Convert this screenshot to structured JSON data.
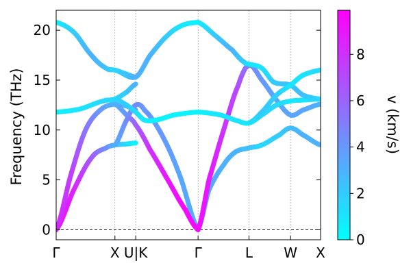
{
  "chart_data": {
    "type": "line",
    "ylabel": "Frequency (THz)",
    "ylim": [
      -1,
      22
    ],
    "yticks": [
      0,
      5,
      10,
      15,
      20
    ],
    "xticks": [
      {
        "label": "Γ",
        "pos": 0.0
      },
      {
        "label": "X",
        "pos": 1.0
      },
      {
        "label": "U|K",
        "pos": 1.354
      },
      {
        "label": "Γ",
        "pos": 2.415
      },
      {
        "label": "L",
        "pos": 3.281
      },
      {
        "label": "W",
        "pos": 3.989
      },
      {
        "label": "X",
        "pos": 4.5
      }
    ],
    "zero_line": true,
    "colorbar": {
      "label": "v (km/s)",
      "min": 0,
      "max": 9.9,
      "ticks": [
        0,
        2,
        4,
        6,
        8
      ],
      "colors": [
        "#00ffff",
        "#ff00ff"
      ]
    },
    "series": [
      {
        "points": [
          [
            0,
            0,
            9.5
          ],
          [
            0.3,
            4.0,
            8.5
          ],
          [
            0.6,
            7.2,
            6.5
          ],
          [
            0.85,
            8.2,
            4.5
          ],
          [
            1.0,
            8.5,
            3.0
          ],
          [
            1.2,
            8.6,
            1.5
          ],
          [
            1.354,
            8.7,
            0.5
          ]
        ]
      },
      {
        "points": [
          [
            0,
            0,
            8.5
          ],
          [
            0.25,
            5.5,
            7.5
          ],
          [
            0.5,
            10.0,
            5.5
          ],
          [
            0.75,
            12.0,
            4.0
          ],
          [
            1.0,
            12.6,
            3.0
          ],
          [
            1.2,
            12.4,
            3.5
          ],
          [
            1.354,
            12.0,
            4.0
          ]
        ]
      },
      {
        "points": [
          [
            0,
            11.8,
            0.5
          ],
          [
            0.4,
            12.1,
            1.0
          ],
          [
            0.8,
            12.9,
            1.5
          ],
          [
            1.0,
            13.1,
            1.5
          ],
          [
            1.2,
            13.8,
            2.0
          ],
          [
            1.354,
            14.6,
            3.0
          ]
        ]
      },
      {
        "points": [
          [
            0,
            20.8,
            0.5
          ],
          [
            0.3,
            19.8,
            2.0
          ],
          [
            0.6,
            17.5,
            3.0
          ],
          [
            0.85,
            16.2,
            2.5
          ],
          [
            1.0,
            16.0,
            1.5
          ],
          [
            1.2,
            15.6,
            2.0
          ],
          [
            1.354,
            15.3,
            3.0
          ]
        ]
      },
      {
        "points": [
          [
            1.0,
            8.5,
            3.0
          ],
          [
            1.2,
            11.0,
            4.5
          ],
          [
            1.354,
            12.5,
            4.5
          ],
          [
            1.5,
            12.0,
            4.0
          ],
          [
            1.8,
            9.5,
            4.0
          ],
          [
            2.1,
            5.5,
            3.5
          ],
          [
            2.415,
            0,
            3.0
          ]
        ]
      },
      {
        "points": [
          [
            1.0,
            12.6,
            3.0
          ],
          [
            1.2,
            11.5,
            4.0
          ],
          [
            1.354,
            10.5,
            6.0
          ],
          [
            1.6,
            8.0,
            8.0
          ],
          [
            1.9,
            5.0,
            9.0
          ],
          [
            2.2,
            2.0,
            9.5
          ],
          [
            2.415,
            0,
            9.5
          ]
        ]
      },
      {
        "points": [
          [
            1.0,
            13.1,
            1.5
          ],
          [
            1.2,
            12.5,
            2.0
          ],
          [
            1.354,
            11.8,
            1.5
          ],
          [
            1.5,
            11.0,
            1.0
          ],
          [
            1.7,
            11.0,
            0.5
          ],
          [
            2.0,
            11.5,
            0.5
          ],
          [
            2.415,
            11.8,
            0.5
          ]
        ]
      },
      {
        "points": [
          [
            1.0,
            16.0,
            1.5
          ],
          [
            1.354,
            15.3,
            3.0
          ],
          [
            1.6,
            17.5,
            3.0
          ],
          [
            1.9,
            19.5,
            2.0
          ],
          [
            2.15,
            20.5,
            1.0
          ],
          [
            2.415,
            20.8,
            0.5
          ]
        ]
      },
      {
        "points": [
          [
            2.415,
            0,
            3.0
          ],
          [
            2.6,
            4.0,
            3.5
          ],
          [
            2.85,
            6.5,
            3.0
          ],
          [
            3.05,
            7.8,
            3.0
          ],
          [
            3.281,
            8.2,
            2.5
          ],
          [
            3.5,
            8.5,
            1.5
          ],
          [
            3.8,
            9.5,
            2.0
          ],
          [
            3.989,
            10.2,
            2.5
          ],
          [
            4.2,
            9.5,
            3.0
          ],
          [
            4.5,
            8.5,
            3.0
          ]
        ]
      },
      {
        "points": [
          [
            2.415,
            0,
            9.5
          ],
          [
            2.6,
            5.0,
            9.0
          ],
          [
            2.85,
            10.0,
            8.0
          ],
          [
            3.1,
            14.5,
            7.0
          ],
          [
            3.281,
            16.5,
            5.0
          ],
          [
            3.5,
            15.0,
            4.0
          ],
          [
            3.75,
            13.0,
            3.5
          ],
          [
            3.989,
            11.5,
            3.5
          ],
          [
            4.2,
            12.0,
            3.5
          ],
          [
            4.5,
            12.6,
            3.0
          ]
        ]
      },
      {
        "points": [
          [
            2.415,
            11.8,
            0.5
          ],
          [
            2.8,
            11.5,
            1.0
          ],
          [
            3.1,
            10.9,
            1.0
          ],
          [
            3.281,
            10.7,
            1.0
          ],
          [
            3.5,
            11.5,
            1.5
          ],
          [
            3.75,
            12.5,
            1.5
          ],
          [
            3.989,
            12.9,
            1.0
          ],
          [
            4.2,
            13.0,
            1.0
          ],
          [
            4.5,
            13.1,
            1.5
          ]
        ]
      },
      {
        "points": [
          [
            2.415,
            20.8,
            0.5
          ],
          [
            2.7,
            19.5,
            2.0
          ],
          [
            3.0,
            18.0,
            3.0
          ],
          [
            3.2,
            16.8,
            2.0
          ],
          [
            3.281,
            16.6,
            1.0
          ],
          [
            3.5,
            16.2,
            1.0
          ],
          [
            3.7,
            14.8,
            2.0
          ],
          [
            3.989,
            14.5,
            2.5
          ],
          [
            4.2,
            13.5,
            2.5
          ],
          [
            4.5,
            13.1,
            1.5
          ]
        ]
      },
      {
        "points": [
          [
            3.281,
            10.7,
            1.0
          ],
          [
            3.5,
            11.8,
            2.0
          ],
          [
            3.75,
            13.5,
            2.0
          ],
          [
            3.989,
            14.5,
            1.0
          ],
          [
            4.2,
            15.5,
            1.0
          ],
          [
            4.5,
            16.0,
            1.5
          ]
        ]
      }
    ]
  }
}
